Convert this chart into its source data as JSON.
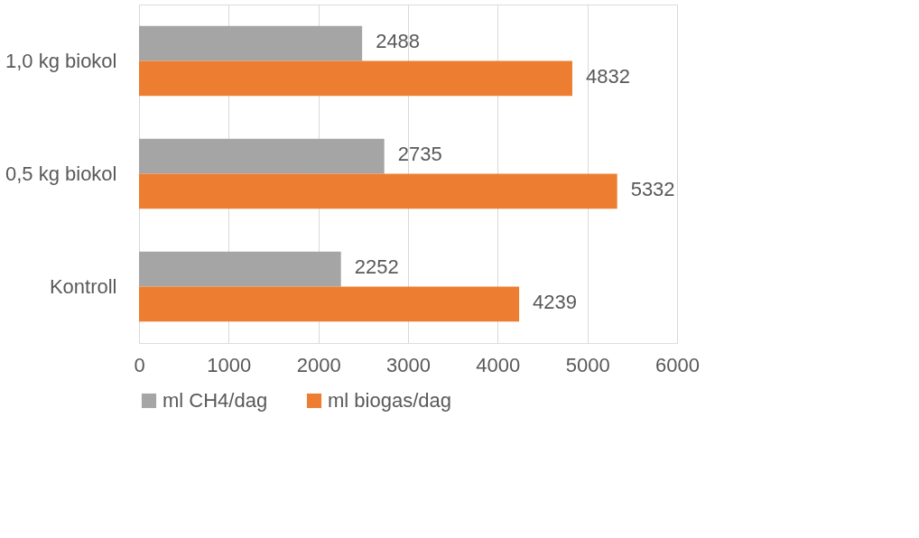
{
  "chart_data": {
    "type": "bar",
    "orientation": "horizontal",
    "categories": [
      "1,0 kg biokol",
      "0,5 kg biokol",
      "Kontroll"
    ],
    "series": [
      {
        "name": "ml CH4/dag",
        "color": "#a5a5a5",
        "values": [
          2488,
          2735,
          2252
        ]
      },
      {
        "name": "ml biogas/dag",
        "color": "#ed7d31",
        "values": [
          4832,
          5332,
          4239
        ]
      }
    ],
    "xlim": [
      0,
      6000
    ],
    "xticks": [
      0,
      1000,
      2000,
      3000,
      4000,
      5000,
      6000
    ],
    "grid": "x",
    "legend": "bottom",
    "data_labels": true
  }
}
